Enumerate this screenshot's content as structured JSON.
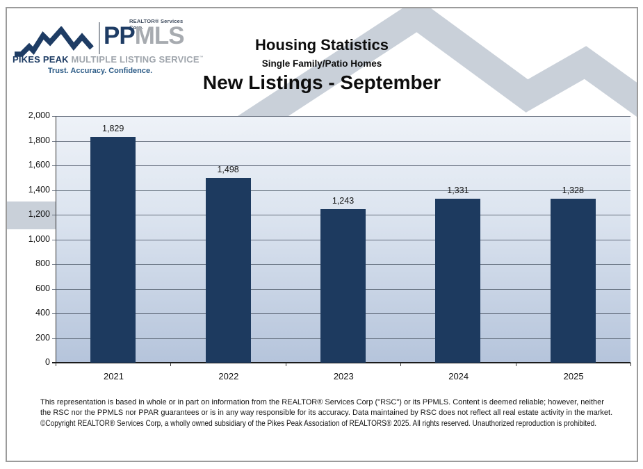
{
  "header": {
    "logo": {
      "realtor_services": "REALTOR® Services Corp.",
      "pp": "PP",
      "mls": "MLS",
      "pikes_peak": "PIKES PEAK",
      "mls_full": " MULTIPLE LISTING SERVICE",
      "tm": "™",
      "tagline": "Trust. Accuracy. Confidence."
    },
    "title": "Housing Statistics",
    "subtitle": "Single Family/Patio Homes",
    "chart_title": "New Listings - September"
  },
  "chart_data": {
    "type": "bar",
    "title": "New Listings - September",
    "categories": [
      "2021",
      "2022",
      "2023",
      "2024",
      "2025"
    ],
    "values": [
      1829,
      1498,
      1243,
      1331,
      1328
    ],
    "value_labels": [
      "1,829",
      "1,498",
      "1,243",
      "1,331",
      "1,328"
    ],
    "xlabel": "",
    "ylabel": "",
    "ylim": [
      0,
      2000
    ],
    "ytick_step": 200,
    "ytick_labels": [
      "0",
      "200",
      "400",
      "600",
      "800",
      "1,000",
      "1,200",
      "1,400",
      "1,600",
      "1,800",
      "2,000"
    ],
    "grid": true,
    "legend": false,
    "bar_color": "#1d3a5f",
    "plot_gradient_top": "#eef2f8",
    "plot_gradient_bottom": "#b5c4db"
  },
  "footer": {
    "disclaimer": "This representation is based in whole or in part on information from the REALTOR® Services Corp (\"RSC\") or its PPMLS. Content is deemed reliable;  however, neither the RSC nor the PPMLS nor PPAR guarantees or is in any way responsible for its accuracy. Data maintained by RSC does not reflect all real estate activity in the market.",
    "copyright": "©Copyright REALTOR® Services Corp, a wholly owned subsidiary of the Pikes Peak Association of REALTORS® 2025.  All rights reserved. Unauthorized reproduction is prohibited."
  },
  "colors": {
    "navy": "#1e3c64",
    "logo_gray": "#a7abb0",
    "tagline_blue": "#2d5c87",
    "watermark_gray": "#c9d0d9",
    "gridline": "#4d5867"
  }
}
